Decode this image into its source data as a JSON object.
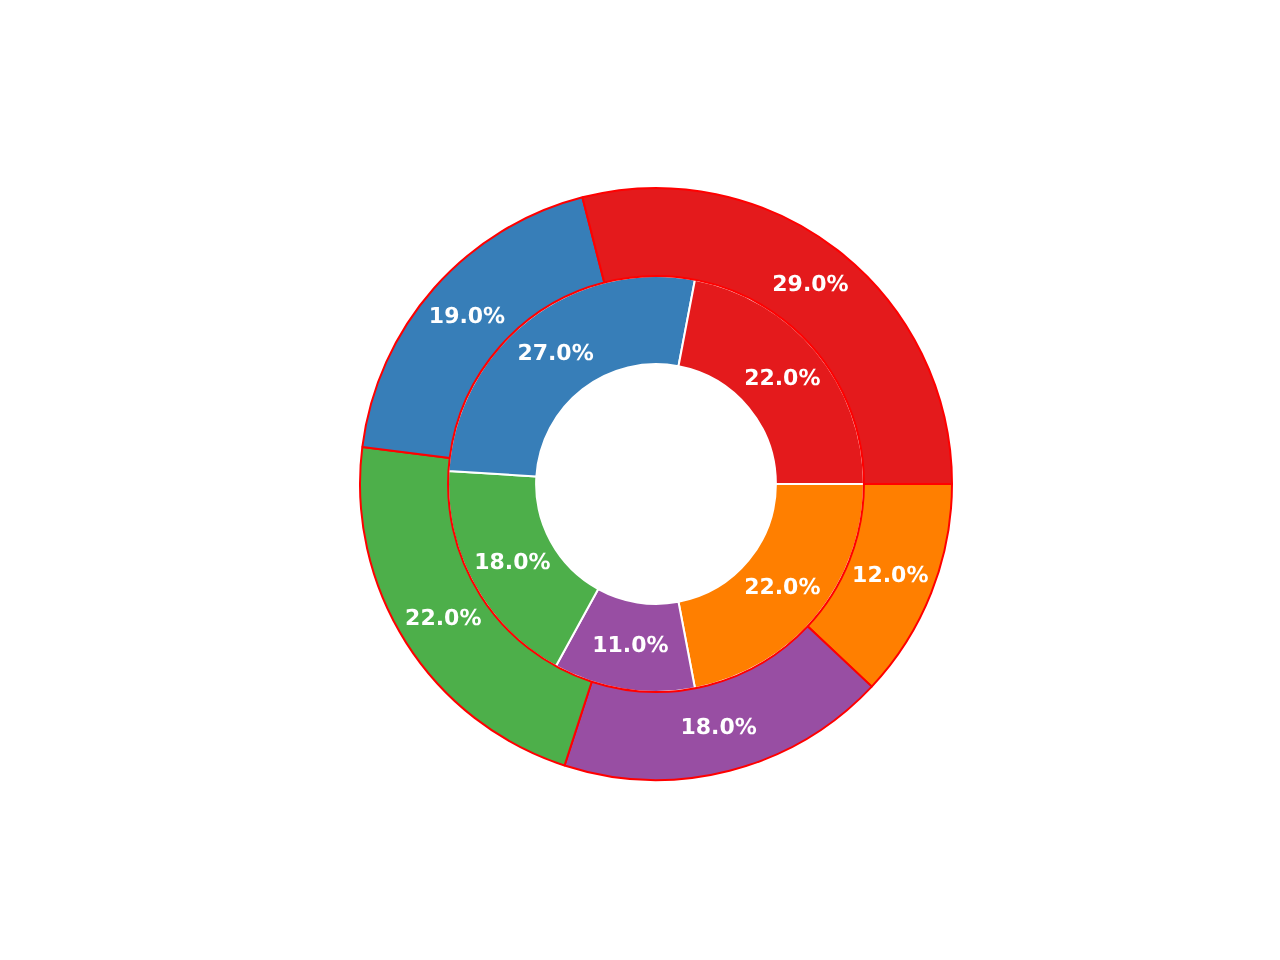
{
  "chart_data": {
    "type": "donut",
    "categories": [
      null,
      null,
      null,
      null,
      null
    ],
    "series": [
      {
        "colors": [
          "#ff7f00",
          "#984ea3",
          "#4daf4a",
          "#377eb8",
          "#e41a1c"
        ],
        "color": "#ff0000",
        "values": [
          12,
          18,
          22,
          19,
          29
        ],
        "value_labels": [
          "12.0%",
          "18.0%",
          "22.0%",
          "19.0%",
          "29.0%"
        ]
      },
      {
        "colors": [
          "#ff7f00",
          "#984ea3",
          "#4daf4a",
          "#377eb8",
          "#e41a1c"
        ],
        "color": "#ffffff",
        "values": [
          22,
          11,
          18,
          27,
          22
        ],
        "value_labels": [
          "22.0%",
          "11.0%",
          "18.0%",
          "27.0%",
          "22.0%"
        ]
      }
    ],
    "legend": false
  }
}
